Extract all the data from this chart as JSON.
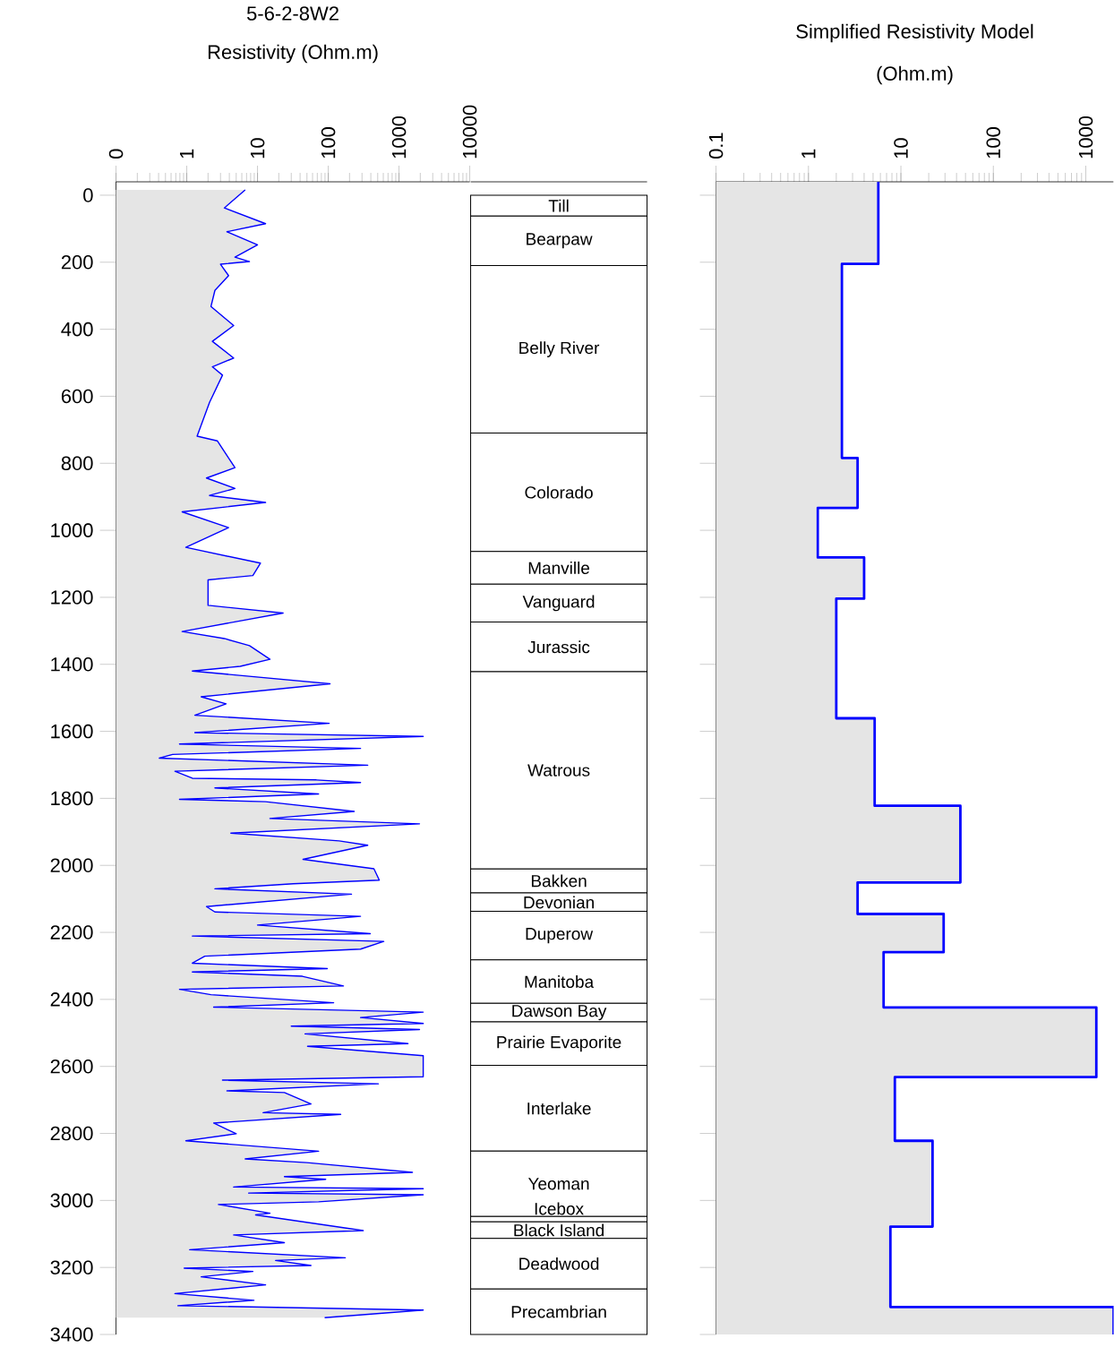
{
  "chart_data": [
    {
      "type": "area",
      "orientation": "horizontal",
      "title": "5-6-2-8W2",
      "xlabel": "Resistivity (Ohm.m)",
      "log": "x",
      "xlim": [
        0.1,
        10000
      ],
      "xticks": [
        {
          "value": 0.1,
          "label": "0"
        },
        1,
        10,
        100,
        1000,
        10000
      ],
      "ylim": [
        3400,
        -40
      ],
      "yticks": [
        0,
        200,
        400,
        600,
        800,
        1000,
        1200,
        1400,
        1600,
        1800,
        2000,
        2200,
        2400,
        2600,
        2800,
        3000,
        3200,
        3400
      ],
      "series": [
        {
          "color": "#0000ff",
          "values": [
            6.7,
            3.4,
            13,
            3.7,
            10,
            4.8,
            7.7,
            3.0,
            3.9,
            2.5,
            2.2,
            4.6,
            2.3,
            4.6,
            2.3,
            3.2,
            2.1,
            1.4,
            2.7,
            4.8,
            1.9,
            4.8,
            2.1,
            13,
            0.86,
            3.9,
            0.97,
            11,
            8.6,
            2.0,
            2.0,
            23,
            0.86,
            3.4,
            7.7,
            15,
            5.7,
            1.2,
            106,
            1.6,
            3.6,
            1.3,
            103,
            1.3,
            2200,
            0.79,
            286,
            0.63,
            0.41,
            361,
            0.68,
            1.2,
            68,
            286,
            2.5,
            73,
            0.79,
            13,
            233,
            15,
            1950,
            4.2,
            142,
            361,
            44,
            442,
            527,
            32,
            2.5,
            213,
            1.9,
            2.5,
            286,
            10,
            393,
            1.2,
            609,
            286,
            1.8,
            1.2,
            97,
            1.2,
            43,
            164,
            0.79,
            2.2,
            119,
            2.4,
            2200,
            286,
            2200,
            30,
            1950,
            47,
            1340,
            51,
            2200,
            2200,
            3.2,
            511,
            3.7,
            24,
            57,
            12,
            150,
            2.4,
            5.0,
            0.97,
            73,
            6.7,
            50,
            1550,
            24,
            92,
            4.6,
            2200,
            7.5,
            2200,
            73,
            2.8,
            15,
            9.4,
            312,
            4.6,
            24,
            1.1,
            174,
            18,
            57,
            0.92,
            8.6,
            1.6,
            13,
            0.68,
            8.9,
            0.75,
            2200,
            89
          ],
          "x": [
            -16,
            38,
            85,
            109,
            148,
            185,
            198,
            206,
            240,
            284,
            332,
            389,
            436,
            486,
            512,
            537,
            618,
            719,
            733,
            813,
            844,
            875,
            896,
            917,
            945,
            992,
            1051,
            1098,
            1135,
            1148,
            1224,
            1247,
            1302,
            1323,
            1344,
            1385,
            1406,
            1420,
            1458,
            1497,
            1518,
            1552,
            1576,
            1604,
            1615,
            1638,
            1651,
            1669,
            1680,
            1701,
            1719,
            1740,
            1745,
            1753,
            1769,
            1787,
            1803,
            1810,
            1839,
            1860,
            1876,
            1904,
            1927,
            1940,
            1982,
            2010,
            2044,
            2055,
            2070,
            2086,
            2123,
            2139,
            2152,
            2178,
            2204,
            2211,
            2227,
            2250,
            2271,
            2292,
            2308,
            2318,
            2331,
            2360,
            2370,
            2386,
            2410,
            2423,
            2438,
            2454,
            2472,
            2480,
            2490,
            2503,
            2532,
            2540,
            2568,
            2631,
            2641,
            2652,
            2673,
            2678,
            2712,
            2738,
            2743,
            2769,
            2801,
            2822,
            2853,
            2876,
            2887,
            2916,
            2929,
            2937,
            2960,
            2965,
            2978,
            2983,
            3004,
            3012,
            3038,
            3043,
            3090,
            3103,
            3126,
            3147,
            3171,
            3179,
            3194,
            3202,
            3212,
            3228,
            3252,
            3278,
            3298,
            3314,
            3327,
            3350
          ]
        }
      ]
    },
    {
      "type": "bar",
      "stacked": true,
      "categories": [
        null
      ],
      "ylim": [
        3400,
        -40
      ],
      "tick_labels": false,
      "series": [
        {
          "name": "Till",
          "color": "#ffffff",
          "values": [
            62
          ]
        },
        {
          "name": "Bearpaw",
          "color": "#ffffff",
          "values": [
            148
          ]
        },
        {
          "name": "Belly River",
          "color": "#ffffff",
          "values": [
            500
          ]
        },
        {
          "name": "Colorado",
          "color": "#ffffff",
          "values": [
            353
          ]
        },
        {
          "name": "Manville",
          "color": "#ffffff",
          "values": [
            98
          ]
        },
        {
          "name": "Vanguard",
          "color": "#ffffff",
          "values": [
            113
          ]
        },
        {
          "name": "Jurassic",
          "color": "#ffffff",
          "values": [
            148
          ]
        },
        {
          "name": "Watrous",
          "color": "#ffffff",
          "values": [
            589
          ]
        },
        {
          "name": "Bakken",
          "color": "#ffffff",
          "values": [
            71
          ]
        },
        {
          "name": "Devonian",
          "color": "#ffffff",
          "values": [
            55
          ]
        },
        {
          "name": "Duperow",
          "color": "#ffffff",
          "values": [
            145
          ]
        },
        {
          "name": "Manitoba",
          "color": "#ffffff",
          "values": [
            130
          ]
        },
        {
          "name": "Dawson Bay",
          "color": "#ffffff",
          "values": [
            55
          ]
        },
        {
          "name": "Prairie Evaporite",
          "color": "#ffffff",
          "values": [
            130
          ]
        },
        {
          "name": "Interlake",
          "color": "#ffffff",
          "values": [
            256
          ]
        },
        {
          "name": "Yeoman",
          "color": "#ffffff",
          "values": [
            195
          ]
        },
        {
          "name": "Icebox",
          "color": "#ffffff",
          "values": [
            16
          ]
        },
        {
          "name": "Black Island",
          "color": "#ffffff",
          "values": [
            49
          ]
        },
        {
          "name": "Deadwood",
          "color": "#ffffff",
          "values": [
            151
          ]
        },
        {
          "name": "Precambrian",
          "color": "#ffffff",
          "values": [
            136
          ]
        }
      ]
    },
    {
      "type": "area",
      "orientation": "horizontal",
      "title": "Simplified Resistivity Model",
      "xlabel": "(Ohm.m)",
      "log": "x",
      "xlim": [
        0.1,
        2000
      ],
      "xticks": [
        0.1,
        1,
        10,
        100,
        1000
      ],
      "ylim": [
        3400,
        -40
      ],
      "yticks": [
        0,
        200,
        400,
        600,
        800,
        1000,
        1200,
        1400,
        1600,
        1800,
        2000,
        2200,
        2400,
        2600,
        2800,
        3000,
        3200,
        3400
      ],
      "tick_labels": "x",
      "series": [
        {
          "color": "#0000ff",
          "values": [
            5.7,
            5.7,
            2.3,
            2.3,
            3.4,
            3.4,
            1.26,
            1.26,
            4.0,
            4.0,
            2.0,
            2.0,
            5.2,
            5.2,
            44,
            44,
            3.4,
            3.4,
            29,
            29,
            6.5,
            6.5,
            1300,
            1300,
            8.6,
            8.6,
            22,
            22,
            7.7,
            7.7,
            2000,
            2000
          ],
          "x": [
            -40,
            205,
            205,
            784,
            784,
            933,
            933,
            1081,
            1081,
            1204,
            1204,
            1561,
            1561,
            1822,
            1822,
            2051,
            2051,
            2145,
            2145,
            2259,
            2259,
            2424,
            2424,
            2632,
            2632,
            2822,
            2822,
            3078,
            3078,
            3318,
            3318,
            3400
          ]
        }
      ]
    }
  ]
}
